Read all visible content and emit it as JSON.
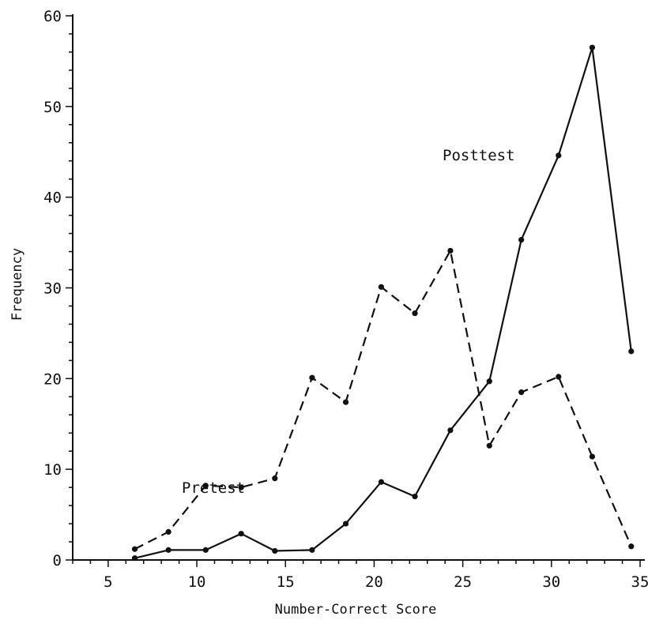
{
  "chart_data": {
    "type": "line",
    "xlabel": "Number-Correct Score",
    "ylabel": "Frequency",
    "xlim": [
      3,
      35
    ],
    "ylim": [
      0,
      60
    ],
    "x_ticks": [
      5,
      10,
      15,
      20,
      25,
      30,
      35
    ],
    "y_ticks": [
      0,
      10,
      20,
      30,
      40,
      50,
      60
    ],
    "grid": false,
    "series": [
      {
        "name": "Pretest",
        "line_style": "dashed",
        "color": "#111111",
        "x": [
          6.5,
          8.4,
          10.5,
          12.5,
          14.4,
          16.5,
          18.4,
          20.4,
          22.3,
          24.3,
          26.5,
          28.3,
          30.4,
          32.3,
          34.5
        ],
        "y": [
          1.2,
          3.1,
          8.2,
          8.0,
          9.0,
          20.1,
          17.4,
          30.1,
          27.2,
          34.1,
          12.6,
          18.5,
          20.2,
          11.4,
          1.5
        ]
      },
      {
        "name": "Posttest",
        "line_style": "solid",
        "color": "#111111",
        "x": [
          6.5,
          8.4,
          10.5,
          12.5,
          14.4,
          16.5,
          18.4,
          20.4,
          22.3,
          24.3,
          26.5,
          28.3,
          30.4,
          32.3,
          34.5
        ],
        "y": [
          0.2,
          1.1,
          1.1,
          2.9,
          1.0,
          1.1,
          4.0,
          8.6,
          7.0,
          14.3,
          19.7,
          35.3,
          44.6,
          56.5,
          23.0
        ]
      }
    ]
  }
}
